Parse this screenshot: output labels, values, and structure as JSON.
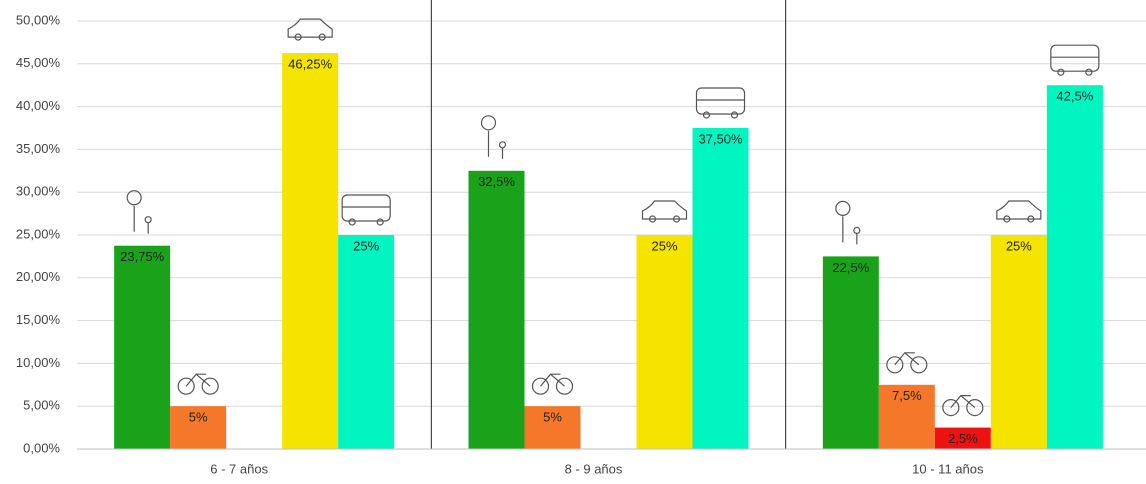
{
  "chart_data": {
    "type": "bar",
    "categories": [
      "6 - 7 años",
      "8 - 9 años",
      "10 - 11 años"
    ],
    "series": [
      {
        "color": "#1aa31a",
        "values": [
          23.75,
          32.5,
          22.5
        ],
        "value_labels": [
          "23,75%",
          "32,5%",
          "22,5%"
        ]
      },
      {
        "color": "#f5782a",
        "values": [
          5,
          5,
          7.5
        ],
        "value_labels": [
          "5%",
          "5%",
          "7,5%"
        ]
      },
      {
        "color": "#ee1111",
        "values": [
          null,
          null,
          2.5
        ],
        "value_labels": [
          null,
          null,
          "2,5%"
        ]
      },
      {
        "color": "#f5e400",
        "values": [
          46.25,
          25,
          25
        ],
        "value_labels": [
          "46,25%",
          "25%",
          "25%"
        ]
      },
      {
        "color": "#00f5c0",
        "values": [
          25,
          37.5,
          42.5
        ],
        "value_labels": [
          "25%",
          "37,50%",
          "42,5%"
        ]
      }
    ],
    "ylim": [
      0,
      50
    ],
    "yticks": [
      {
        "value": 0,
        "label": "0,00%"
      },
      {
        "value": 5,
        "label": "5,00%"
      },
      {
        "value": 10,
        "label": "10,00%"
      },
      {
        "value": 15,
        "label": "15,00%"
      },
      {
        "value": 20,
        "label": "20,00%"
      },
      {
        "value": 25,
        "label": "25,00%"
      },
      {
        "value": 30,
        "label": "30,00%"
      },
      {
        "value": 35,
        "label": "35,00%"
      },
      {
        "value": 40,
        "label": "40,00%"
      },
      {
        "value": 45,
        "label": "45,00%"
      },
      {
        "value": 50,
        "label": "50,00%"
      }
    ],
    "grid": true
  }
}
